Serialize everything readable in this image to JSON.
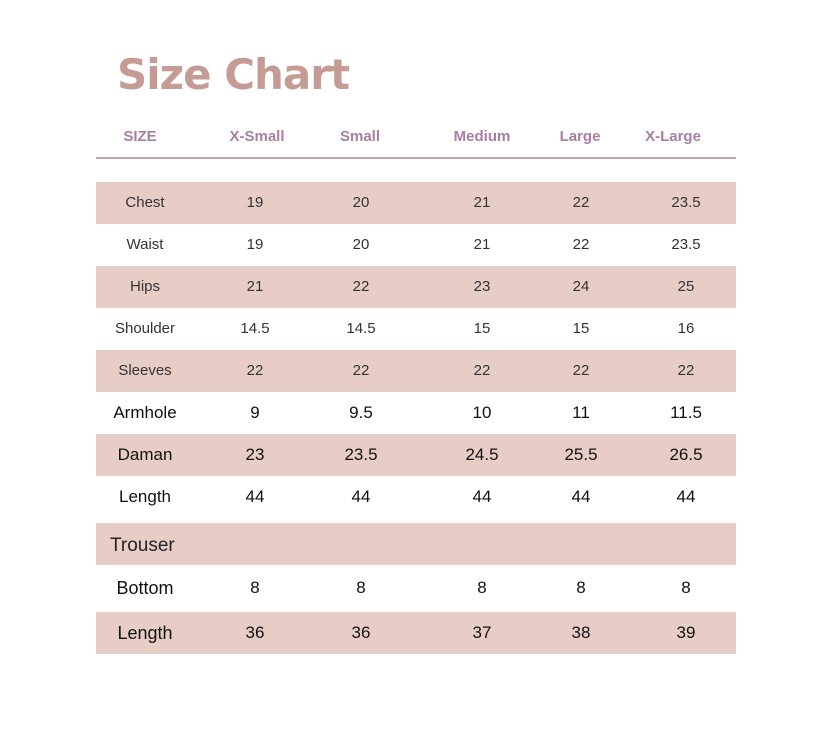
{
  "title": "Size Chart",
  "colors": {
    "title": "#c59b95",
    "header": "#a97ea2",
    "row_shade": "#e8cdc7"
  },
  "headers": [
    "SIZE",
    "X-Small",
    "Small",
    "Medium",
    "Large",
    "X-Large"
  ],
  "rows": [
    {
      "label": "Chest",
      "values": [
        "19",
        "20",
        "21",
        "22",
        "23.5"
      ]
    },
    {
      "label": "Waist",
      "values": [
        "19",
        "20",
        "21",
        "22",
        "23.5"
      ]
    },
    {
      "label": "Hips",
      "values": [
        "21",
        "22",
        "23",
        "24",
        "25"
      ]
    },
    {
      "label": "Shoulder",
      "values": [
        "14.5",
        "14.5",
        "15",
        "15",
        "16"
      ]
    },
    {
      "label": "Sleeves",
      "values": [
        "22",
        "22",
        "22",
        "22",
        "22"
      ]
    },
    {
      "label": "Armhole",
      "values": [
        "9",
        "9.5",
        "10",
        "11",
        "11.5"
      ]
    },
    {
      "label": "Daman",
      "values": [
        "23",
        "23.5",
        "24.5",
        "25.5",
        "26.5"
      ]
    },
    {
      "label": "Length",
      "values": [
        "44",
        "44",
        "44",
        "44",
        "44"
      ]
    }
  ],
  "trouser_section": "Trouser",
  "trouser_rows": [
    {
      "label": "Bottom",
      "values": [
        "8",
        "8",
        "8",
        "8",
        "8"
      ]
    },
    {
      "label": "Length",
      "values": [
        "36",
        "36",
        "37",
        "38",
        "39"
      ]
    }
  ]
}
